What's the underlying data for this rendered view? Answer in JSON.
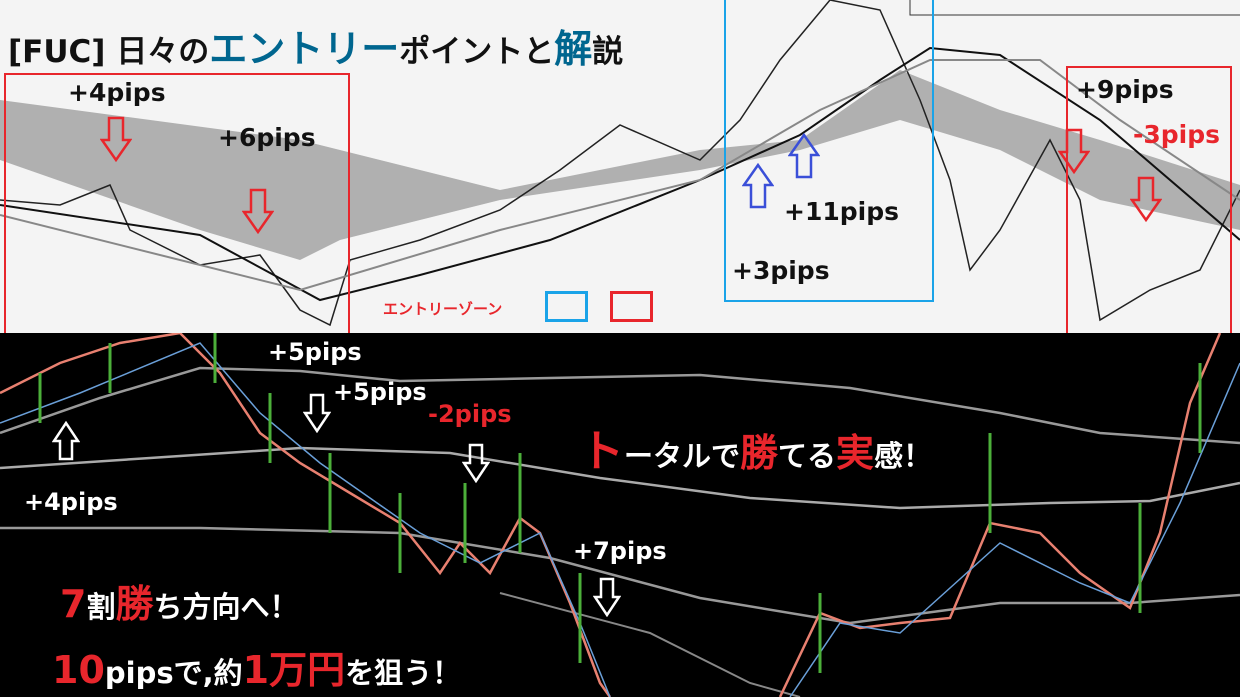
{
  "title": {
    "prefix": "[FUC] 日々の",
    "highlight1": "エントリー",
    "middle": "ポイントと",
    "highlight2": "解",
    "suffix": "説"
  },
  "colors": {
    "highlight": "#00668f",
    "red_zone": "#e8262c",
    "blue_zone": "#1aa3e8",
    "top_bg": "#f4f4f4",
    "bottom_bg": "#000000"
  },
  "top_chart": {
    "labels": [
      "+4pips",
      "+6pips",
      "+11pips",
      "+3pips",
      "+9pips",
      "-3pips"
    ],
    "legend": {
      "label": "エントリーゾーン"
    }
  },
  "bottom_chart": {
    "labels": [
      "+5pips",
      "+5pips",
      "-2pips",
      "+4pips",
      "+7pips"
    ],
    "slogan1": {
      "a": "ト",
      "b": "ータルで",
      "c": "勝",
      "d": "てる",
      "e": "実",
      "f": "感！"
    },
    "slogan2": {
      "a": "7",
      "b": "割",
      "c": "勝",
      "d": "ち方向へ！"
    },
    "slogan3": {
      "a": "10",
      "b": "pipsで,約",
      "c": "1万円",
      "d": "を狙う！"
    }
  },
  "icons": [
    "red-down-arrow-icon",
    "blue-up-arrow-icon",
    "white-up-arrow-icon",
    "white-down-arrow-icon"
  ]
}
